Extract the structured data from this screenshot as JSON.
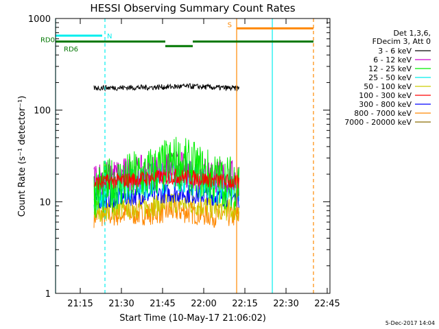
{
  "chart_data": {
    "type": "line",
    "title": "HESSI Observing Summary Count Rates",
    "xlabel": "Start Time (10-May-17 21:06:02)",
    "ylabel": "Count Rate (s⁻¹ detector⁻¹)",
    "yscale": "log",
    "ylim": [
      1,
      1000
    ],
    "xlim": [
      "21:06",
      "22:46"
    ],
    "x_ticks": [
      "21:15",
      "21:30",
      "21:45",
      "22:00",
      "22:15",
      "22:30",
      "22:45"
    ],
    "y_ticks": [
      "1",
      "10",
      "100",
      "1000"
    ],
    "legend_header": [
      "Det 1,3,6,",
      "FDecim 3, Att 0"
    ],
    "legend_position": "right",
    "footer_date": "5-Dec-2017 14:04",
    "series": [
      {
        "name": "3 - 6 keV",
        "color": "#000000",
        "x": [
          "21:20",
          "21:40",
          "21:55",
          "22:05",
          "22:13"
        ],
        "values": [
          175,
          177,
          182,
          176,
          172
        ]
      },
      {
        "name": "6 - 12 keV",
        "color": "#cc00cc",
        "x": [
          "21:20",
          "21:40",
          "21:50",
          "22:05",
          "22:13"
        ],
        "values": [
          18,
          21,
          23,
          19,
          18
        ]
      },
      {
        "name": "12 - 25 keV",
        "color": "#00ee00",
        "x": [
          "21:20",
          "21:40",
          "21:50",
          "22:05",
          "22:13"
        ],
        "values": [
          13,
          20,
          27,
          17,
          16
        ]
      },
      {
        "name": "25 - 50 keV",
        "color": "#00eeee",
        "x": [
          "21:20",
          "21:40",
          "21:50",
          "22:05",
          "22:13"
        ],
        "values": [
          12,
          17,
          20,
          14,
          13
        ]
      },
      {
        "name": "50 - 100 keV",
        "color": "#cccc00",
        "x": [
          "21:20",
          "21:40",
          "21:50",
          "22:05",
          "22:13"
        ],
        "values": [
          8,
          9,
          10,
          8.5,
          8
        ]
      },
      {
        "name": "100 - 300 keV",
        "color": "#ff0000",
        "x": [
          "21:20",
          "21:40",
          "21:50",
          "22:05",
          "22:13"
        ],
        "values": [
          16,
          18,
          19,
          17,
          16
        ]
      },
      {
        "name": "300 - 800 keV",
        "color": "#0000ff",
        "x": [
          "21:20",
          "21:40",
          "21:50",
          "22:05",
          "22:13"
        ],
        "values": [
          10.5,
          12,
          12.5,
          11.5,
          11
        ]
      },
      {
        "name": "800 - 7000 keV",
        "color": "#ff8800",
        "x": [
          "21:20",
          "21:40",
          "21:50",
          "22:05",
          "22:13"
        ],
        "values": [
          7,
          7.5,
          8,
          7,
          7
        ]
      },
      {
        "name": "7000 - 20000 keV",
        "color": "#8a6a00",
        "x": [],
        "values": []
      }
    ],
    "flags": [
      {
        "label": "N",
        "color": "#00eeee",
        "bar_y": 650,
        "spans": [
          [
            "21:06",
            "21:23"
          ]
        ]
      },
      {
        "label": "S",
        "color": "#ff8800",
        "bar_y": 780,
        "spans": [
          [
            "22:12",
            "22:40"
          ]
        ]
      },
      {
        "label": "RD0",
        "color": "#007700",
        "bar_y": 560,
        "spans": [
          [
            "21:06",
            "21:46"
          ],
          [
            "21:56",
            "22:40"
          ]
        ]
      },
      {
        "label": "RD6",
        "color": "#007700",
        "bar_y": 500,
        "spans": [
          [
            "21:46",
            "21:56"
          ]
        ]
      }
    ],
    "vertical_lines": [
      {
        "x": "21:06",
        "color": "#00eeee",
        "style": "solid"
      },
      {
        "x": "21:24",
        "color": "#00eeee",
        "style": "dashed"
      },
      {
        "x": "22:12",
        "color": "#ff8800",
        "style": "solid"
      },
      {
        "x": "22:25",
        "color": "#00eeee",
        "style": "solid"
      },
      {
        "x": "22:40",
        "color": "#ff8800",
        "style": "dashed"
      }
    ]
  }
}
